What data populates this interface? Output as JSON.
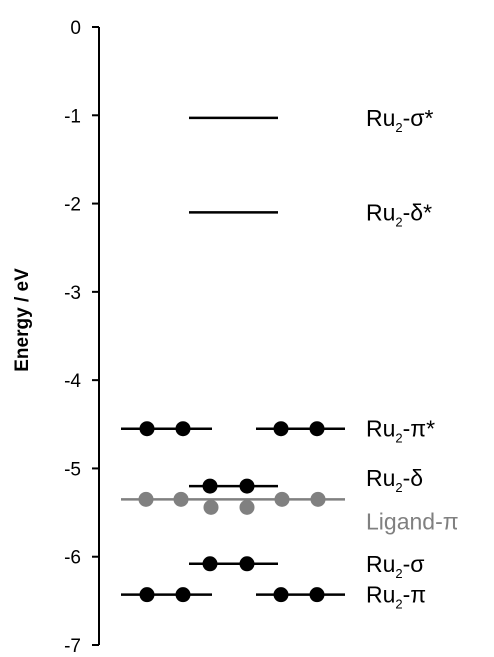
{
  "chart_data": {
    "type": "energy-level-diagram",
    "ylabel": "Energy / eV",
    "ylim": [
      -7,
      0
    ],
    "yticks": [
      "0",
      "-1",
      "-2",
      "-3",
      "-4",
      "-5",
      "-6",
      "-7"
    ],
    "colors": {
      "black": "#000000",
      "ligand": "#808080"
    },
    "levels": [
      {
        "name": "Ru2-sigma*",
        "energy": -1.03,
        "label": {
          "base": "Ru",
          "sub": "2",
          "rest": "-σ*"
        },
        "color": "#000000",
        "segments": [
          {
            "span": "center",
            "electrons": 0
          }
        ]
      },
      {
        "name": "Ru2-delta*",
        "energy": -2.1,
        "label": {
          "base": "Ru",
          "sub": "2",
          "rest": "-δ*"
        },
        "color": "#000000",
        "segments": [
          {
            "span": "center",
            "electrons": 0
          }
        ]
      },
      {
        "name": "Ru2-pi*",
        "energy": -4.55,
        "label": {
          "base": "Ru",
          "sub": "2",
          "rest": "-π*"
        },
        "color": "#000000",
        "segments": [
          {
            "span": "left",
            "electrons": 2
          },
          {
            "span": "right",
            "electrons": 2
          }
        ]
      },
      {
        "name": "Ru2-delta",
        "energy": -5.2,
        "label": {
          "base": "Ru",
          "sub": "2",
          "rest": "-δ"
        },
        "color": "#000000",
        "segments": [
          {
            "span": "center",
            "electrons": 2
          }
        ]
      },
      {
        "name": "Ligand-pi",
        "energy": -5.35,
        "label": {
          "base": "Ligand-π",
          "sub": "",
          "rest": ""
        },
        "color": "#808080",
        "segments": [
          {
            "span": "wide",
            "electrons": 6
          }
        ]
      },
      {
        "name": "Ru2-sigma",
        "energy": -6.08,
        "label": {
          "base": "Ru",
          "sub": "2",
          "rest": "-σ"
        },
        "color": "#000000",
        "segments": [
          {
            "span": "center",
            "electrons": 2
          }
        ]
      },
      {
        "name": "Ru2-pi",
        "energy": -6.43,
        "label": {
          "base": "Ru",
          "sub": "2",
          "rest": "-π"
        },
        "color": "#000000",
        "segments": [
          {
            "span": "left",
            "electrons": 2
          },
          {
            "span": "right",
            "electrons": 2
          }
        ]
      }
    ]
  }
}
